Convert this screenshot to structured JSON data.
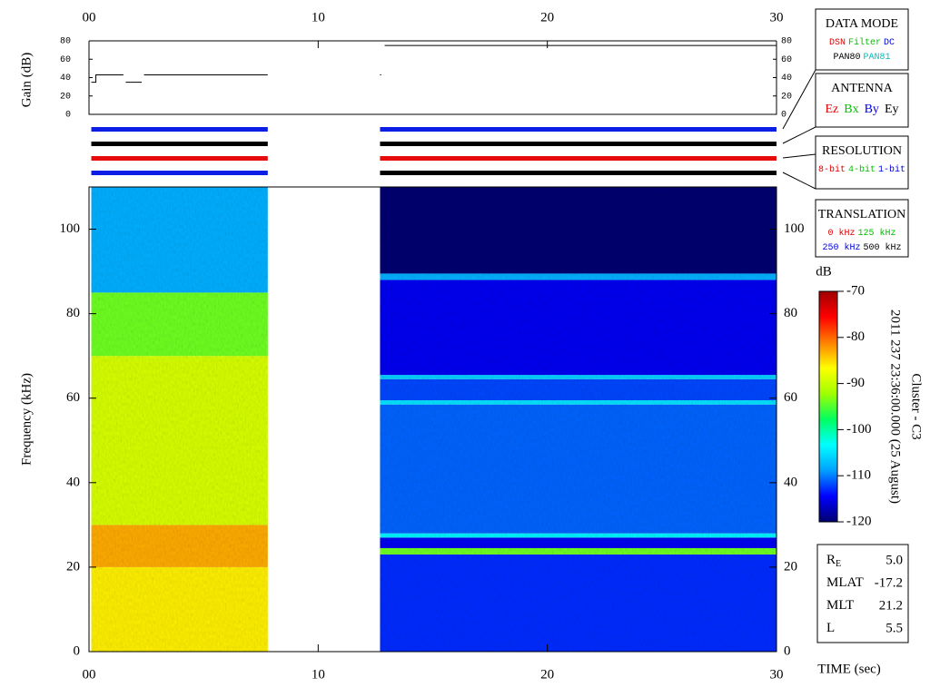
{
  "chart_data": {
    "type": "heatmap",
    "xlabel": "TIME (sec)",
    "ylabel": "Frequency (kHz)",
    "xlim": [
      0,
      30
    ],
    "xticks": [
      {
        "value": 0,
        "label": "00"
      },
      10,
      20,
      30
    ],
    "ylim": [
      0,
      110
    ],
    "yticks": [
      0,
      20,
      40,
      60,
      80,
      100
    ],
    "colorbar": {
      "label": "dB",
      "lim": [
        -120,
        -70
      ],
      "ticks": [
        -70,
        -80,
        -90,
        -100,
        -110,
        -120
      ],
      "colors": [
        "#000070",
        "#0000ff",
        "#00a0ff",
        "#00ffff",
        "#00ff60",
        "#a0ff00",
        "#ffff00",
        "#ff8000",
        "#ff0000",
        "#a00000"
      ]
    },
    "blocks": [
      {
        "t": [
          0.1,
          7.8
        ],
        "bands": [
          [
            0,
            20,
            -86
          ],
          [
            20,
            30,
            -83
          ],
          [
            30,
            70,
            -89
          ],
          [
            70,
            85,
            -94
          ],
          [
            85,
            110,
            -108
          ]
        ]
      },
      {
        "t": [
          12.7,
          30
        ],
        "bands": [
          [
            0,
            23,
            -113
          ],
          [
            23,
            24.5,
            -94
          ],
          [
            24.5,
            27,
            -115
          ],
          [
            27,
            28,
            -104
          ],
          [
            28,
            58.5,
            -111
          ],
          [
            58.5,
            59.5,
            -105
          ],
          [
            59.5,
            64.5,
            -112
          ],
          [
            64.5,
            65.5,
            -106
          ],
          [
            65.5,
            88,
            -115
          ],
          [
            88,
            89.5,
            -108
          ],
          [
            89.5,
            110,
            -120
          ]
        ]
      }
    ],
    "gain": {
      "type": "line",
      "ylabel": "Gain (dB)",
      "ylim": [
        0,
        80
      ],
      "yticks": [
        0,
        20,
        40,
        60,
        80
      ],
      "color": "#000000",
      "x": [
        0.1,
        0.3,
        0.3,
        1.5,
        1.55,
        1.6,
        2.3,
        2.35,
        2.4,
        7.8,
        10,
        12.7,
        12.75,
        12.8,
        12.9,
        30
      ],
      "values": [
        35,
        35,
        43,
        43,
        null,
        35,
        35,
        null,
        43,
        43,
        null,
        43,
        43,
        null,
        75,
        75
      ]
    },
    "mode_bars": [
      {
        "t": [
          0.1,
          7.8
        ],
        "colors": [
          "#0a1ee6",
          "#000000",
          "#e60a0a",
          "#0a1ee6"
        ]
      },
      {
        "t": [
          12.7,
          30
        ],
        "colors": [
          "#0a1ee6",
          "#000000",
          "#e60a0a",
          "#000000"
        ]
      }
    ]
  },
  "legend_boxes": [
    {
      "title": "DATA MODE",
      "rows": [
        [
          {
            "text": "DSN",
            "color": "#e00000"
          },
          {
            "text": "Filter",
            "color": "#00c000"
          },
          {
            "text": "DC",
            "color": "#0000e0"
          }
        ],
        [
          {
            "text": "PAN80",
            "color": "#000000"
          },
          {
            "text": "PAN81",
            "color": "#00c0c0"
          }
        ]
      ]
    },
    {
      "title": "ANTENNA",
      "rows": [
        [
          {
            "text": "Ez",
            "color": "#e00000"
          },
          {
            "text": "Bx",
            "color": "#00c000"
          },
          {
            "text": "By",
            "color": "#0000e0"
          },
          {
            "text": "Ey",
            "color": "#000000"
          }
        ]
      ]
    },
    {
      "title": "RESOLUTION",
      "rows": [
        [
          {
            "text": "8-bit",
            "color": "#e00000"
          },
          {
            "text": "4-bit",
            "color": "#00c000"
          },
          {
            "text": "1-bit",
            "color": "#0000e0"
          }
        ]
      ]
    },
    {
      "title": "TRANSLATION",
      "rows": [
        [
          {
            "text": "0 kHz",
            "color": "#e00000"
          },
          {
            "text": "125 kHz",
            "color": "#00c000"
          }
        ],
        [
          {
            "text": "250 kHz",
            "color": "#0000e0"
          },
          {
            "text": "500 kHz",
            "color": "#000000"
          }
        ]
      ]
    }
  ],
  "side_text": [
    "2011 237 23:36:00.000 (25 August)",
    "Cluster - C3"
  ],
  "info": [
    {
      "label": "R",
      "sub": "E",
      "value": "5.0"
    },
    {
      "label": "MLAT",
      "value": "-17.2"
    },
    {
      "label": "MLT",
      "value": "21.2"
    },
    {
      "label": "L",
      "value": "5.5"
    }
  ]
}
